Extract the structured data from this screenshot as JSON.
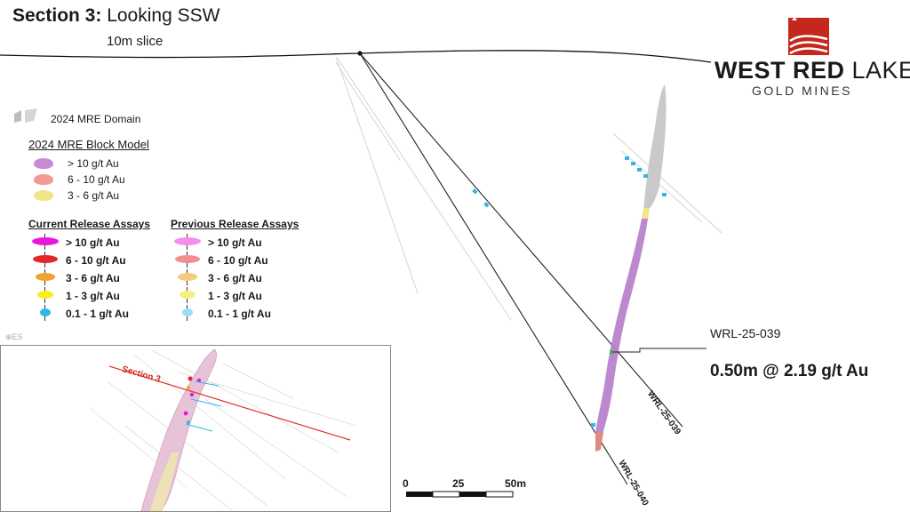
{
  "title": {
    "bold": "Section 3:",
    "rest": " Looking SSW"
  },
  "subtitle": "10m slice",
  "logo": {
    "line1_bold": "WEST RED",
    "line1_light": " LAKE",
    "line2": "GOLD MINES"
  },
  "legend": {
    "domain_label": "2024 MRE Domain",
    "block_model_header": "2024 MRE Block Model",
    "block_model_items": [
      {
        "label": "> 10 g/t Au",
        "color": "#c88ad6"
      },
      {
        "label": "6 - 10 g/t Au",
        "color": "#f19a94"
      },
      {
        "label": "3 - 6 g/t Au",
        "color": "#f1e58a"
      }
    ],
    "current_header": "Current Release Assays",
    "current_items": [
      {
        "label": "> 10 g/t Au",
        "color": "#e619d8"
      },
      {
        "label": "6 - 10 g/t Au",
        "color": "#e3262b"
      },
      {
        "label": "3 - 6 g/t Au",
        "color": "#f2a22e"
      },
      {
        "label": "1 - 3 g/t Au",
        "color": "#f7ee1e"
      },
      {
        "label": "0.1 - 1 g/t Au",
        "color": "#2fb6ea"
      }
    ],
    "previous_header": "Previous Release Assays",
    "previous_items": [
      {
        "label": "> 10 g/t Au",
        "color": "#f48fe9"
      },
      {
        "label": "6 - 10 g/t Au",
        "color": "#f0908c"
      },
      {
        "label": "3 - 6 g/t Au",
        "color": "#f5cc7f"
      },
      {
        "label": "1 - 3 g/t Au",
        "color": "#f7f17c"
      },
      {
        "label": "0.1 - 1 g/t Au",
        "color": "#9fdcf4"
      }
    ]
  },
  "callout": {
    "hole": "WRL-25-039",
    "interval": "0.50m @ 2.19 g/t Au"
  },
  "holes": {
    "hole_039": "WRL-25-039",
    "hole_040": "WRL-25-040"
  },
  "scale_bar": {
    "labels": [
      "0",
      "25",
      "50m"
    ]
  },
  "inset": {
    "section_label": "Section 3"
  },
  "watermark": "⊕ES",
  "colors": {
    "domain_purple": "#b67fcb",
    "red_brand": "#c4281c",
    "section_line": "#e0302a"
  }
}
